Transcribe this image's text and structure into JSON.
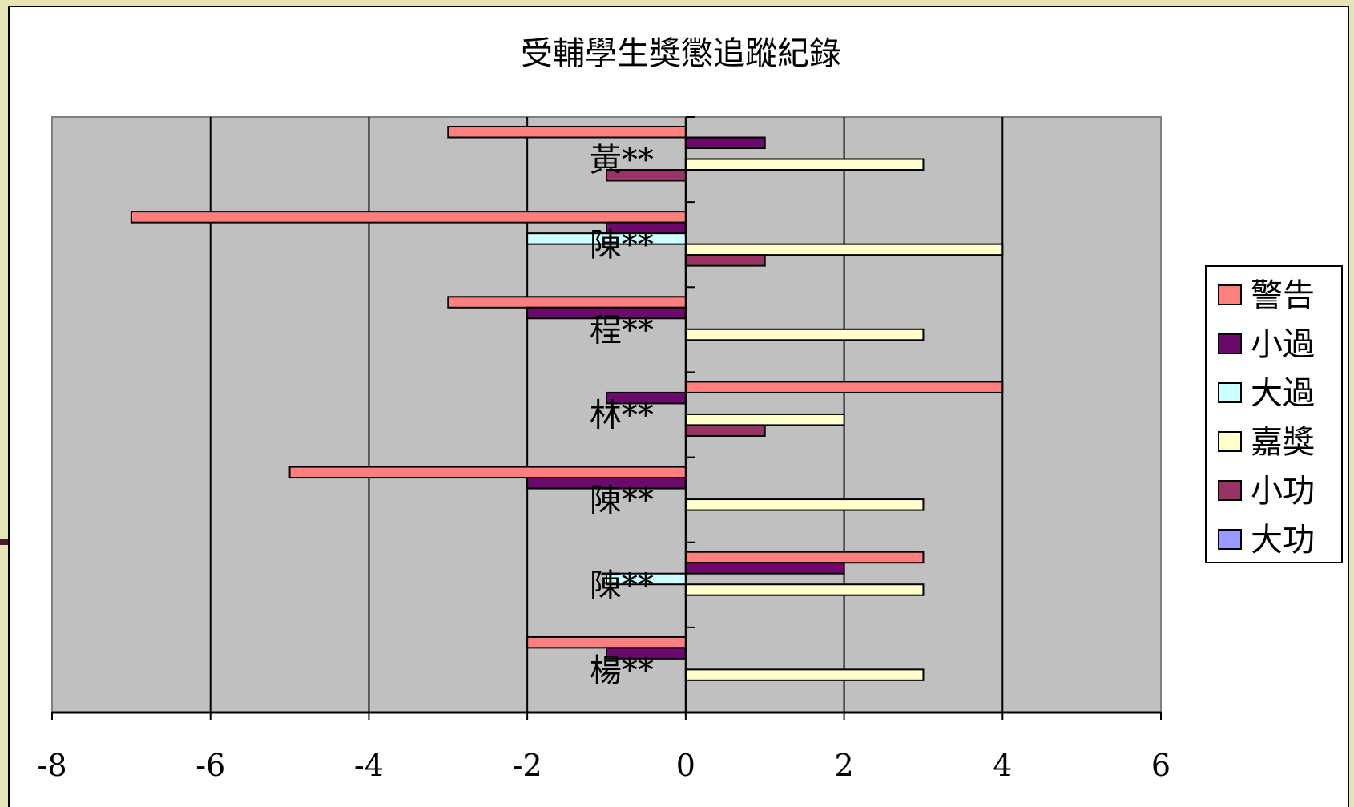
{
  "chart_data": {
    "type": "bar",
    "orientation": "horizontal",
    "title": "受輔學生獎懲追蹤紀錄",
    "categories": [
      "黃**",
      "陳**",
      "程**",
      "林**",
      "陳**",
      "陳**",
      "楊**"
    ],
    "series": [
      {
        "name": "警告",
        "color": "#ff7f7f",
        "values": [
          -3,
          -7,
          -3,
          4,
          -5,
          3,
          -2
        ]
      },
      {
        "name": "小過",
        "color": "#6a0a6a",
        "values": [
          1,
          -1,
          -2,
          -1,
          -2,
          2,
          -1
        ]
      },
      {
        "name": "大過",
        "color": "#ccffff",
        "values": [
          0,
          -2,
          0,
          0,
          0,
          -1,
          0
        ]
      },
      {
        "name": "嘉獎",
        "color": "#ffffcc",
        "values": [
          3,
          4,
          3,
          2,
          3,
          3,
          3
        ]
      },
      {
        "name": "小功",
        "color": "#993366",
        "values": [
          -1,
          1,
          0,
          1,
          0,
          0,
          0
        ]
      },
      {
        "name": "大功",
        "color": "#9999ff",
        "values": [
          0,
          0,
          0,
          0,
          0,
          0,
          0
        ]
      }
    ],
    "xlim": [
      -8,
      6
    ],
    "xticks": [
      "-8",
      "-6",
      "-4",
      "-2",
      "0",
      "2",
      "4",
      "6"
    ],
    "grid": true,
    "plot_background": "#c0c0c0",
    "legend_position": "right"
  }
}
